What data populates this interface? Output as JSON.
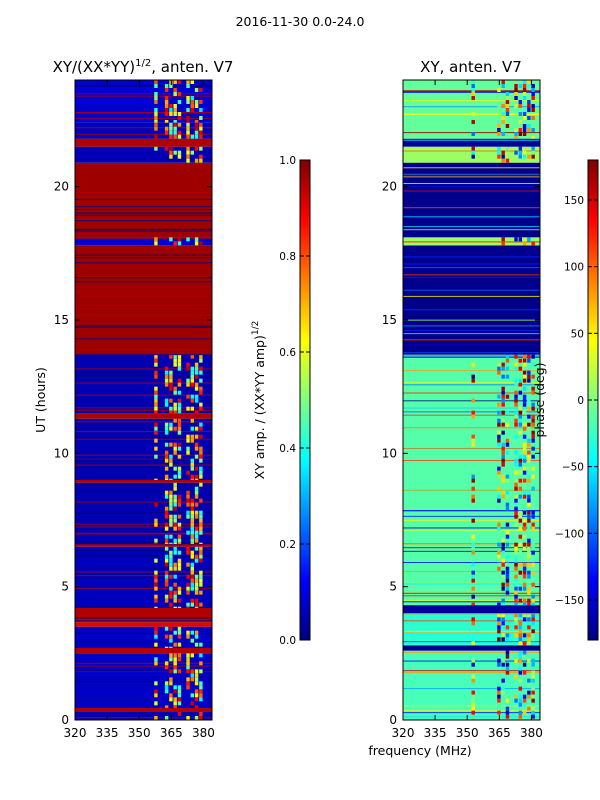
{
  "figure_title": "2016-11-30 0.0-24.0",
  "colors": {
    "jet_stops": [
      "#00007f",
      "#0000ff",
      "#007fff",
      "#00ffff",
      "#7fff7f",
      "#ffff00",
      "#ff7f00",
      "#ff0000",
      "#7f0000"
    ]
  },
  "chart_data": [
    {
      "type": "heatmap",
      "title_text": "XY/(XX*YY)",
      "title_exp": "1/2",
      "title_suffix": ", anten. V7",
      "xlabel": "",
      "ylabel": "UT (hours)",
      "xlim": [
        320,
        384
      ],
      "ylim": [
        0,
        24
      ],
      "xticks": [
        320,
        335,
        350,
        365,
        380
      ],
      "yticks": [
        0,
        5,
        10,
        15,
        20
      ],
      "colorbar": {
        "label_text": "XY amp. / (XX*YY amp)",
        "label_exp": "1/2",
        "range": [
          0.0,
          1.0
        ],
        "ticks": [
          "0.0",
          "0.2",
          "0.4",
          "0.6",
          "0.8",
          "1.0"
        ]
      },
      "bands": [
        {
          "ut": [
            0.0,
            0.3
          ],
          "value": 0.05
        },
        {
          "ut": [
            0.3,
            0.45
          ],
          "value": 0.95
        },
        {
          "ut": [
            0.45,
            2.5
          ],
          "value": 0.07
        },
        {
          "ut": [
            2.5,
            2.7
          ],
          "value": 0.95
        },
        {
          "ut": [
            2.7,
            3.5
          ],
          "value": 0.07
        },
        {
          "ut": [
            3.5,
            3.65
          ],
          "value": 0.9
        },
        {
          "ut": [
            3.65,
            4.2
          ],
          "value": 0.95
        },
        {
          "ut": [
            4.2,
            6.5
          ],
          "value": 0.06
        },
        {
          "ut": [
            6.5,
            6.6
          ],
          "value": 0.95
        },
        {
          "ut": [
            6.6,
            8.9
          ],
          "value": 0.05
        },
        {
          "ut": [
            8.9,
            9.0
          ],
          "value": 0.95
        },
        {
          "ut": [
            9.0,
            11.3
          ],
          "value": 0.05
        },
        {
          "ut": [
            11.3,
            11.5
          ],
          "value": 0.95
        },
        {
          "ut": [
            11.5,
            13.7
          ],
          "value": 0.05
        },
        {
          "ut": [
            13.7,
            17.8
          ],
          "value": 0.97
        },
        {
          "ut": [
            17.8,
            18.1
          ],
          "value": 0.08
        },
        {
          "ut": [
            18.1,
            20.9
          ],
          "value": 0.97
        },
        {
          "ut": [
            20.9,
            21.5
          ],
          "value": 0.06
        },
        {
          "ut": [
            21.5,
            21.8
          ],
          "value": 0.95
        },
        {
          "ut": [
            21.8,
            22.4
          ],
          "value": 0.06
        },
        {
          "ut": [
            22.4,
            24.0
          ],
          "value": 0.08
        }
      ]
    },
    {
      "type": "heatmap",
      "title_text": "XY, anten. V7",
      "xlabel": "frequency (MHz)",
      "ylabel": "",
      "xlim": [
        320,
        384
      ],
      "ylim": [
        0,
        24
      ],
      "xticks": [
        320,
        335,
        350,
        365,
        380
      ],
      "yticks": [
        0,
        5,
        10,
        15,
        20
      ],
      "colorbar": {
        "label_text": "phase (deg)",
        "range": [
          -180,
          180
        ],
        "ticks": [
          "−150",
          "−100",
          "−50",
          "0",
          "50",
          "100",
          "150"
        ]
      },
      "bands": [
        {
          "ut": [
            0.0,
            2.6
          ],
          "value": -20
        },
        {
          "ut": [
            2.6,
            2.8
          ],
          "value": -175
        },
        {
          "ut": [
            2.8,
            4.0
          ],
          "value": -30
        },
        {
          "ut": [
            4.0,
            4.3
          ],
          "value": -170
        },
        {
          "ut": [
            4.3,
            13.7
          ],
          "value": -15
        },
        {
          "ut": [
            13.7,
            17.8
          ],
          "value": -175
        },
        {
          "ut": [
            17.8,
            18.1
          ],
          "value": 10
        },
        {
          "ut": [
            18.1,
            20.9
          ],
          "value": -175
        },
        {
          "ut": [
            20.9,
            21.5
          ],
          "value": 10
        },
        {
          "ut": [
            21.5,
            21.8
          ],
          "value": -170
        },
        {
          "ut": [
            21.8,
            24.0
          ],
          "value": -10
        }
      ]
    }
  ]
}
